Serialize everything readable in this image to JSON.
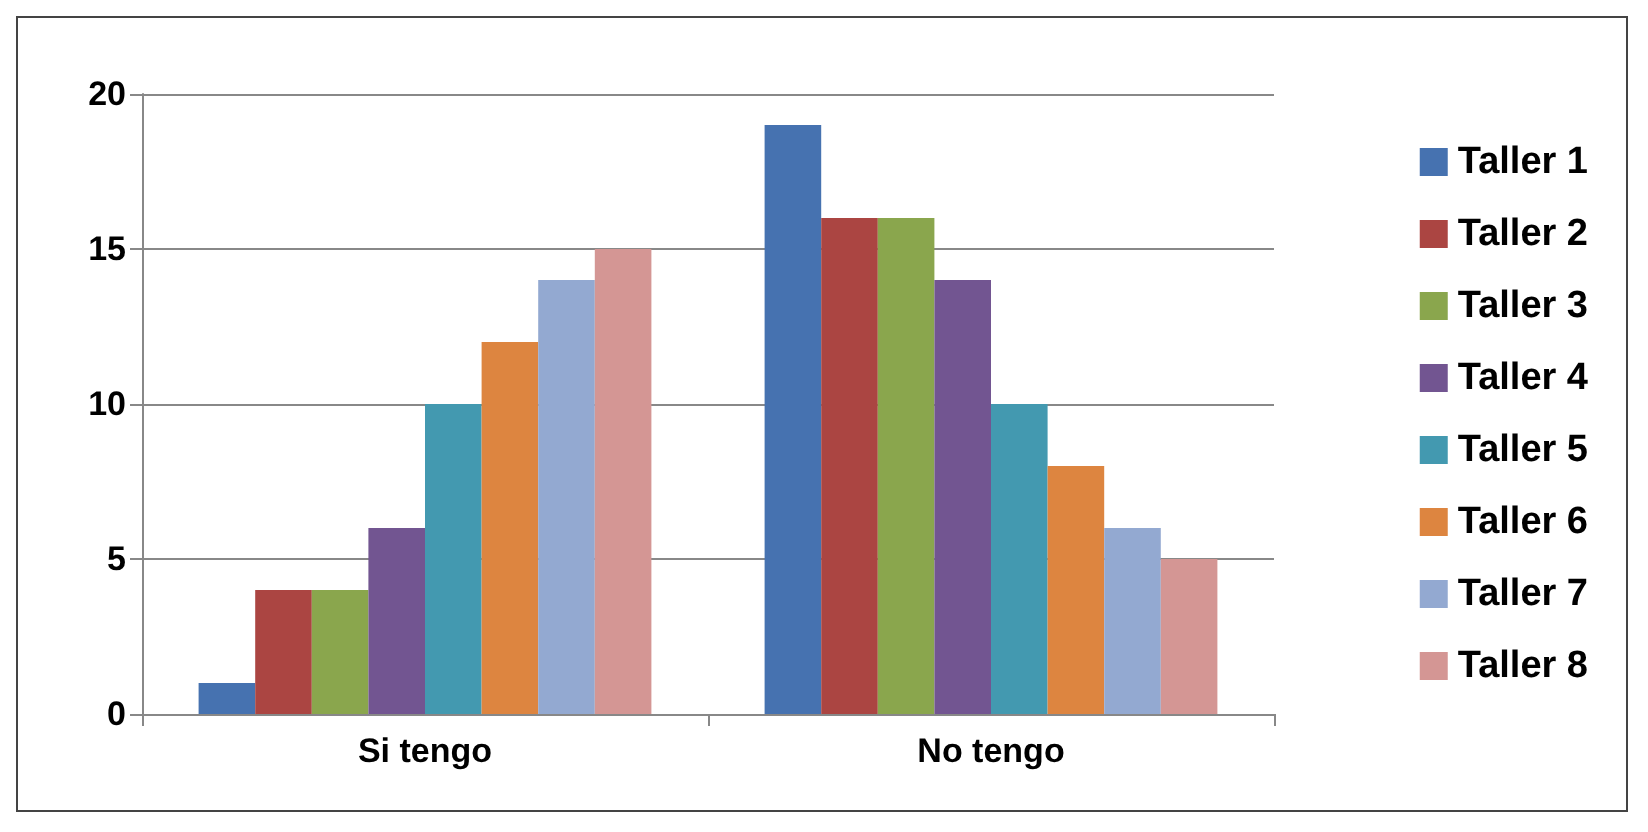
{
  "chart_data": {
    "type": "bar",
    "categories": [
      "Si tengo",
      "No tengo"
    ],
    "series": [
      {
        "name": "Taller 1",
        "color": "#4672b0",
        "values": [
          1,
          19
        ]
      },
      {
        "name": "Taller 2",
        "color": "#ab4542",
        "values": [
          4,
          16
        ]
      },
      {
        "name": "Taller 3",
        "color": "#8aa64d",
        "values": [
          4,
          16
        ]
      },
      {
        "name": "Taller 4",
        "color": "#725591",
        "values": [
          6,
          14
        ]
      },
      {
        "name": "Taller 5",
        "color": "#4399b0",
        "values": [
          10,
          10
        ]
      },
      {
        "name": "Taller 6",
        "color": "#dd8540",
        "values": [
          12,
          8
        ]
      },
      {
        "name": "Taller 7",
        "color": "#93a9d1",
        "values": [
          14,
          6
        ]
      },
      {
        "name": "Taller 8",
        "color": "#d49694",
        "values": [
          15,
          5
        ]
      }
    ],
    "ylim": [
      0,
      20
    ],
    "yticks": [
      0,
      5,
      10,
      15,
      20
    ],
    "grid": "y",
    "legend": "right"
  }
}
